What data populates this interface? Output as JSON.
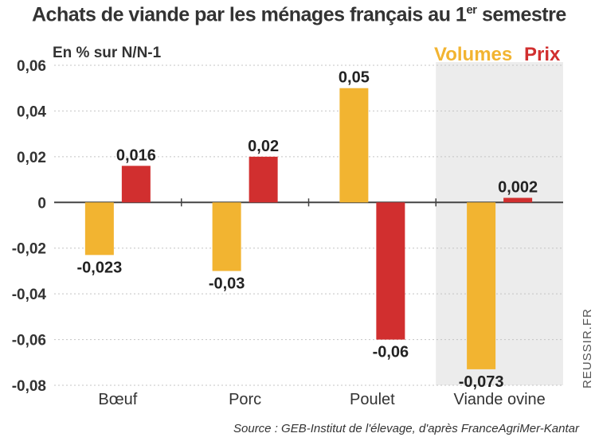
{
  "title": {
    "main": "Achats de viande par les ménages français au 1",
    "sup": "er",
    "end": " semestre"
  },
  "source": "Source : GEB-Institut de l'élevage, d'après FranceAgriMer-Kantar",
  "credit": "REUSSIR.FR",
  "colors": {
    "volumes": "#f2b431",
    "prix": "#d12f2f",
    "highlight": "#ececec",
    "gridline": "#c4c4c4"
  },
  "chart_data": {
    "type": "bar",
    "title": "Achats de viande par les ménages français au 1er semestre",
    "ylabel": "En % sur N/N-1",
    "xlabel": "",
    "categories": [
      "Bœuf",
      "Porc",
      "Poulet",
      "Viande ovine"
    ],
    "series": [
      {
        "name": "Volumes",
        "values": [
          -0.023,
          -0.03,
          0.05,
          -0.073
        ],
        "labels": [
          "-0,023",
          "-0,03",
          "0,05",
          "-0,073"
        ]
      },
      {
        "name": "Prix",
        "values": [
          0.016,
          0.02,
          -0.06,
          0.002
        ],
        "labels": [
          "0,016",
          "0,02",
          "-0,06",
          "0,002"
        ]
      }
    ],
    "ylim": [
      -0.08,
      0.06
    ],
    "yticks": [
      0.06,
      0.04,
      0.02,
      0,
      -0.02,
      -0.04,
      -0.06,
      -0.08
    ],
    "ytick_labels": [
      "0,06",
      "0,04",
      "0,02",
      "0",
      "-0,02",
      "-0,04",
      "-0,06",
      "-0,08"
    ],
    "highlighted_category": "Viande ovine",
    "legend": "top-right",
    "grid": "horizontal"
  }
}
